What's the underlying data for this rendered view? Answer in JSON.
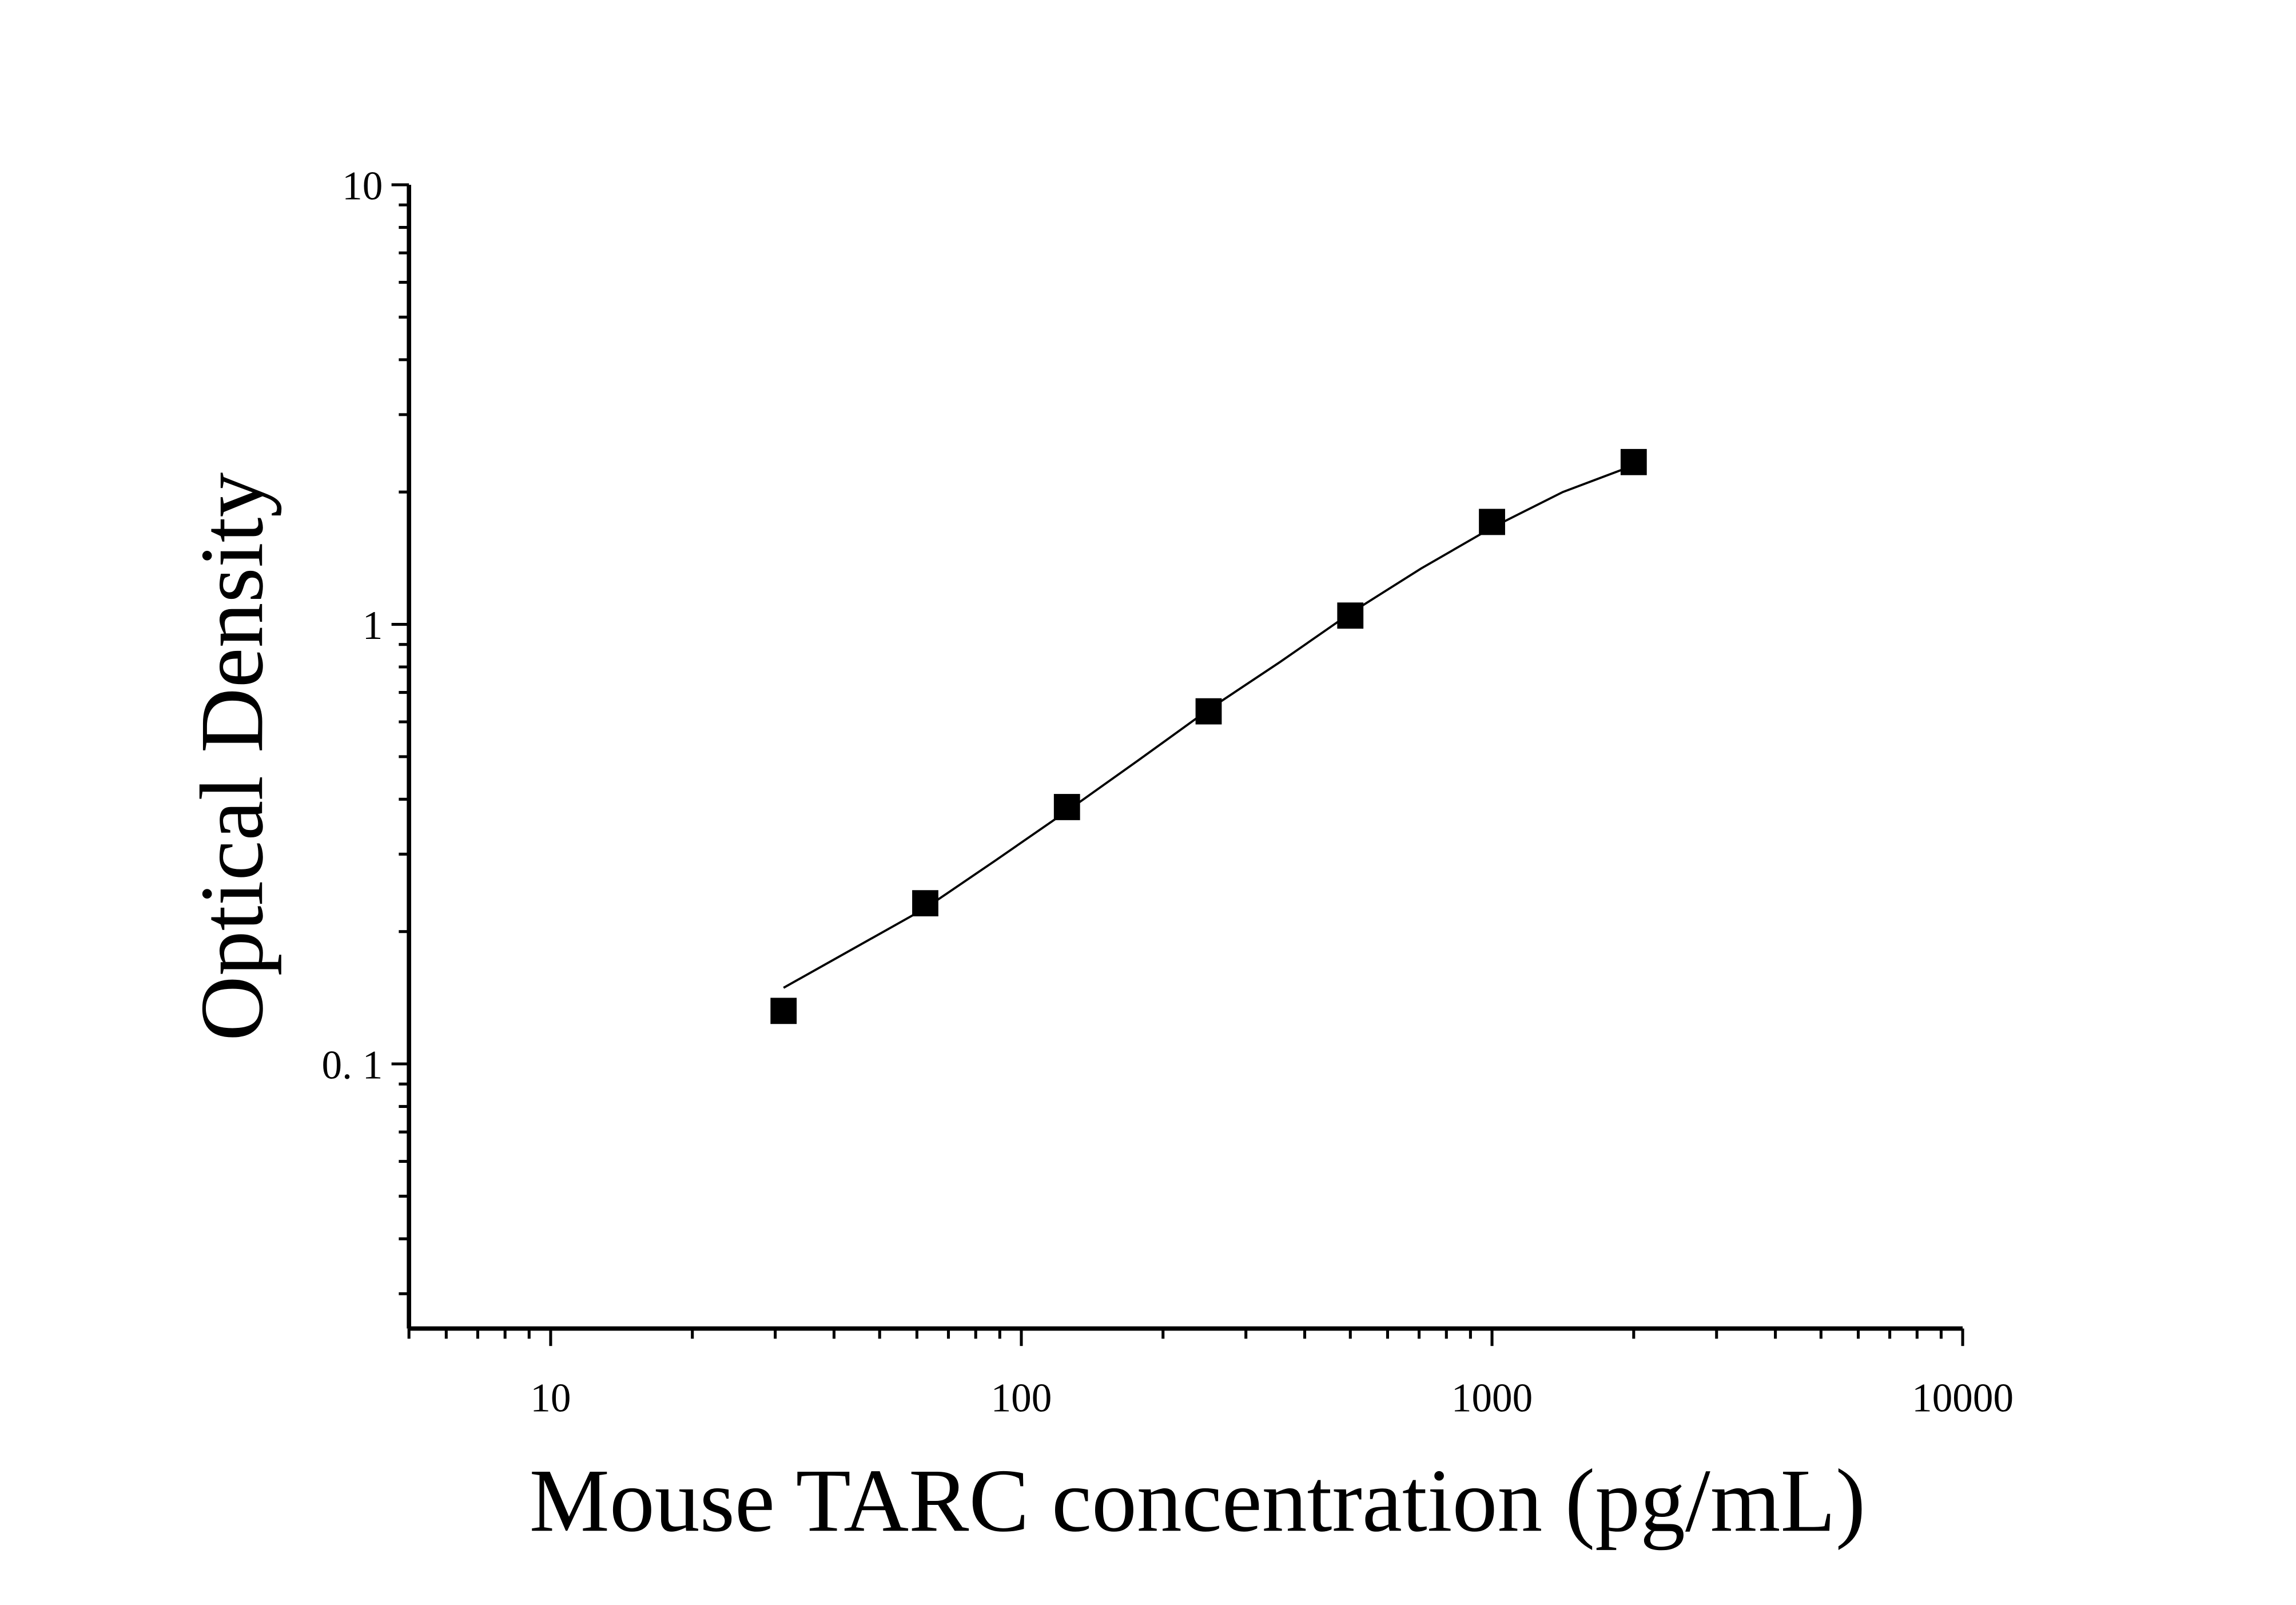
{
  "chart_data": {
    "type": "scatter",
    "xlabel": "Mouse TARC concentration (pg/mL)",
    "ylabel": "Optical Density",
    "xscale": "log",
    "yscale": "log",
    "xlim": [
      5,
      10000
    ],
    "ylim": [
      0.025,
      10
    ],
    "xticks": [
      10,
      100,
      1000,
      10000
    ],
    "yticks": [
      10,
      1,
      {
        "value": 0.1,
        "label": "0. 1"
      }
    ],
    "xminorticks": [
      5,
      6,
      7,
      8,
      9,
      20,
      30,
      40,
      50,
      60,
      70,
      80,
      90,
      200,
      300,
      400,
      500,
      600,
      700,
      800,
      900,
      2000,
      3000,
      4000,
      5000,
      6000,
      7000,
      8000,
      9000
    ],
    "yminorticks": [
      0.03,
      0.04,
      0.05,
      0.06,
      0.07,
      0.08,
      0.09,
      0.2,
      0.3,
      0.4,
      0.5,
      0.6,
      0.7,
      0.8,
      0.9,
      2,
      3,
      4,
      5,
      6,
      7,
      8,
      9
    ],
    "series": [
      {
        "type": "scatter",
        "color": "#000000",
        "x": [
          31.25,
          62.5,
          125,
          250,
          500,
          1000,
          2000
        ],
        "values": [
          0.132,
          0.232,
          0.384,
          0.634,
          1.047,
          1.71,
          2.34
        ]
      },
      {
        "type": "line",
        "color": "#000000",
        "x": [
          31.25,
          44,
          62.5,
          88,
          125,
          177,
          250,
          354,
          500,
          707,
          1000,
          1414,
          2000
        ],
        "values": [
          0.149,
          0.183,
          0.226,
          0.29,
          0.376,
          0.49,
          0.64,
          0.82,
          1.06,
          1.34,
          1.66,
          2.0,
          2.3
        ]
      }
    ]
  }
}
